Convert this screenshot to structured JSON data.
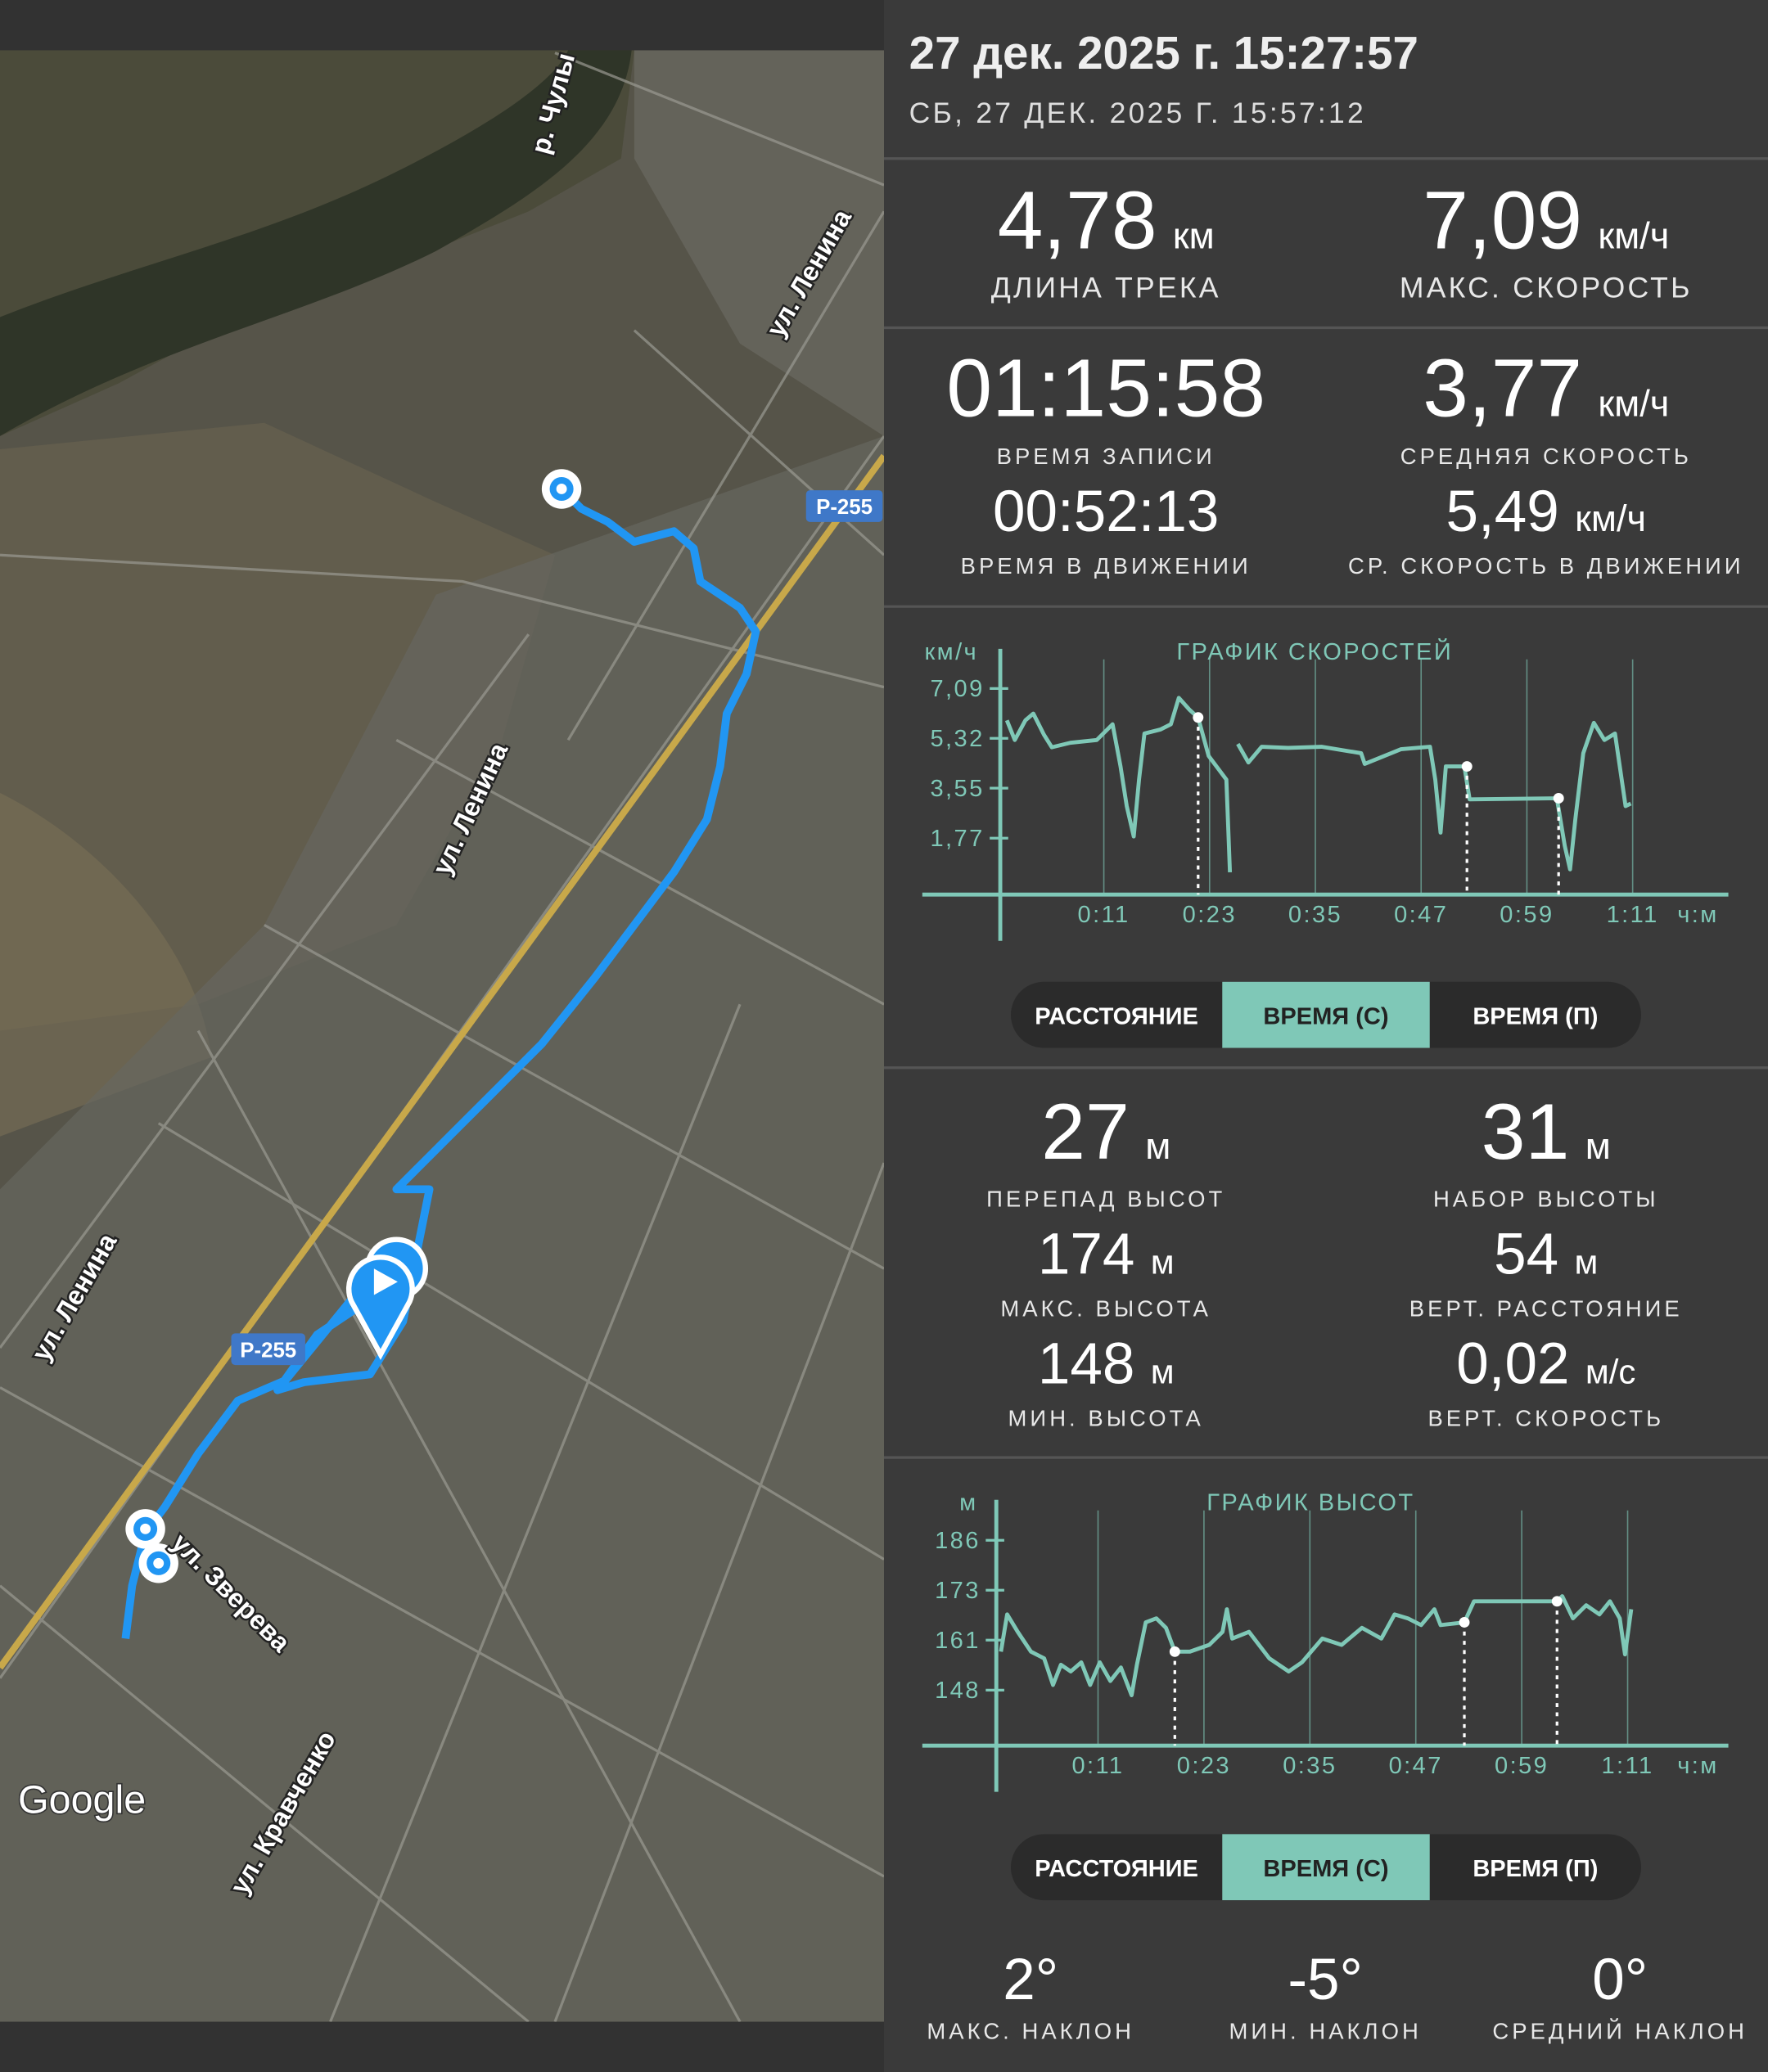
{
  "header": {
    "title": "27 дек. 2025 г. 15:27:57",
    "subtitle": "СБ, 27 ДЕК. 2025 Г. 15:57:12"
  },
  "stats": [
    {
      "value": "4,78",
      "unit": "км",
      "label": "ДЛИНА ТРЕКА"
    },
    {
      "value": "7,09",
      "unit": "км/ч",
      "label": "МАКС. СКОРОСТЬ"
    },
    {
      "value": "01:15:58",
      "label": "ВРЕМЯ ЗАПИСИ"
    },
    {
      "value": "3,77",
      "unit": "км/ч",
      "label": "СРЕДНЯЯ СКОРОСТЬ"
    },
    {
      "value": "00:52:13",
      "label": "ВРЕМЯ В ДВИЖЕНИИ"
    },
    {
      "value": "5,49",
      "unit": "км/ч",
      "label": "СР. СКОРОСТЬ В ДВИЖЕНИИ"
    }
  ],
  "speed_chart": {
    "type": "line",
    "title": "ГРАФИК СКОРОСТЕЙ",
    "y_label": "км/ч",
    "x_label": "ч:м",
    "color": "#7fc8b7",
    "xlim": [
      0,
      82
    ],
    "ylim": [
      0,
      8.5
    ],
    "xticks": [
      {
        "value": 11,
        "label": "0:11"
      },
      {
        "value": 23,
        "label": "0:23"
      },
      {
        "value": 35,
        "label": "0:35"
      },
      {
        "value": 47,
        "label": "0:47"
      },
      {
        "value": 59,
        "label": "0:59"
      },
      {
        "value": 71,
        "label": "1:11"
      }
    ],
    "yticks": [
      {
        "value": 7.09,
        "label": "7,09"
      },
      {
        "value": 5.32,
        "label": "5,32"
      },
      {
        "value": 3.55,
        "label": "3,55"
      },
      {
        "value": 1.77,
        "label": "1,77"
      }
    ],
    "x": [
      0,
      0.9,
      2.1,
      3.0,
      4.2,
      5.1,
      7.2,
      10.2,
      12.0,
      12.9,
      13.6,
      14.4,
      15.0,
      15.6,
      17.4,
      18.6,
      19.5,
      20.7,
      21.7,
      22.9,
      24.9,
      25.3,
      25.7,
      26.2,
      27.4,
      28.9,
      31.9,
      35.7,
      40.2,
      40.6,
      44.7,
      48.0,
      48.6,
      49.2,
      49.8,
      51.9,
      52.5,
      62.4,
      63.3,
      63.9,
      64.5,
      65.4,
      66.6,
      67.8,
      69.0,
      70.2,
      70.8
    ],
    "values": [
      5.96,
      5.26,
      5.96,
      6.2,
      5.45,
      5.0,
      5.16,
      5.26,
      5.82,
      4.32,
      2.91,
      1.83,
      3.85,
      5.49,
      5.63,
      5.82,
      6.76,
      6.34,
      6.06,
      4.69,
      3.85,
      0.56,
      null,
      5.12,
      4.46,
      5.02,
      4.98,
      5.02,
      4.79,
      4.41,
      4.93,
      5.02,
      3.85,
      1.97,
      4.32,
      4.32,
      3.15,
      3.19,
      1.5,
      0.66,
      2.44,
      4.79,
      5.87,
      5.26,
      5.49,
      2.91,
      3.0
    ],
    "markers": [
      {
        "x": 21.7,
        "y": 6.06
      },
      {
        "x": 52.2,
        "y": 4.32
      },
      {
        "x": 62.6,
        "y": 3.19
      }
    ]
  },
  "toggle1": {
    "options": [
      "РАССТОЯНИЕ",
      "ВРЕМЯ (С)",
      "ВРЕМЯ (П)"
    ],
    "selected": 1
  },
  "elevation_stats": [
    {
      "value": "27",
      "unit": "м",
      "label": "ПЕРЕПАД ВЫСОТ"
    },
    {
      "value": "31",
      "unit": "м",
      "label": "НАБОР ВЫСОТЫ"
    },
    {
      "value": "174",
      "unit": "м",
      "label": "МАКС. ВЫСОТА"
    },
    {
      "value": "54",
      "unit": "м",
      "label": "ВЕРТ. РАССТОЯНИЕ"
    },
    {
      "value": "148",
      "unit": "м",
      "label": "МИН. ВЫСОТА"
    },
    {
      "value": "0,02",
      "unit": "м/с",
      "label": "ВЕРТ. СКОРОСТЬ"
    }
  ],
  "elevation_chart": {
    "type": "line",
    "title": "ГРАФИК ВЫСОТ",
    "y_label": "м",
    "x_label": "ч:м",
    "color": "#7fc8b7",
    "xlim": [
      0,
      82
    ],
    "ylim": [
      134,
      196
    ],
    "xticks": [
      {
        "value": 11,
        "label": "0:11"
      },
      {
        "value": 23,
        "label": "0:23"
      },
      {
        "value": 35,
        "label": "0:35"
      },
      {
        "value": 47,
        "label": "0:47"
      },
      {
        "value": 59,
        "label": "0:59"
      },
      {
        "value": 71,
        "label": "1:11"
      }
    ],
    "yticks": [
      {
        "value": 185.8,
        "label": "186"
      },
      {
        "value": 173.2,
        "label": "173"
      },
      {
        "value": 160.6,
        "label": "161"
      },
      148
    ],
    "x": [
      0,
      0.7,
      1.9,
      3.4,
      4.9,
      5.9,
      6.8,
      7.9,
      9.1,
      10.1,
      11.2,
      12.4,
      13.6,
      14.8,
      15.4,
      16.4,
      17.6,
      18.7,
      19.7,
      21.4,
      23.6,
      25.1,
      25.6,
      26.2,
      28.1,
      30.4,
      32.6,
      34.1,
      36.4,
      38.6,
      40.9,
      43.1,
      44.6,
      46.1,
      47.6,
      49.1,
      49.8,
      52.5,
      53.6,
      63.0,
      63.6,
      64.8,
      66.3,
      67.8,
      69.0,
      70.1,
      70.7,
      71.4
    ],
    "values": [
      157.7,
      167.1,
      162.7,
      157.7,
      156.0,
      149.3,
      154.4,
      152.7,
      155.0,
      149.3,
      155.0,
      150.3,
      153.7,
      146.7,
      154.4,
      165.1,
      166.1,
      163.7,
      157.7,
      157.7,
      159.4,
      162.7,
      168.4,
      161.0,
      162.7,
      156.0,
      152.7,
      155.0,
      161.0,
      159.4,
      163.7,
      161.0,
      167.1,
      166.1,
      164.4,
      168.4,
      164.4,
      165.1,
      170.4,
      170.4,
      171.7,
      166.1,
      169.4,
      167.1,
      170.4,
      166.1,
      157.0,
      168.4
    ],
    "markers": [
      {
        "x": 19.7,
        "y": 157.7
      },
      {
        "x": 52.5,
        "y": 165.1
      },
      {
        "x": 63.0,
        "y": 170.4
      }
    ]
  },
  "toggle2": {
    "options": [
      "РАССТОЯНИЕ",
      "ВРЕМЯ (С)",
      "ВРЕМЯ (П)"
    ],
    "selected": 1
  },
  "slope_stats": [
    {
      "value": "2°",
      "label": "МАКС. НАКЛОН"
    },
    {
      "value": "-5°",
      "label": "МИН. НАКЛОН"
    },
    {
      "value": "0°",
      "label": "СРЕДНИЙ НАКЛОН"
    }
  ],
  "map": {
    "labels": [
      "р. Чулы",
      "ул. Ленина",
      "ул. Ленина",
      "ул. Ленина",
      "Р-255",
      "Р-255",
      "ул. Зверева",
      "ул. Кравченко",
      "Google"
    ]
  }
}
